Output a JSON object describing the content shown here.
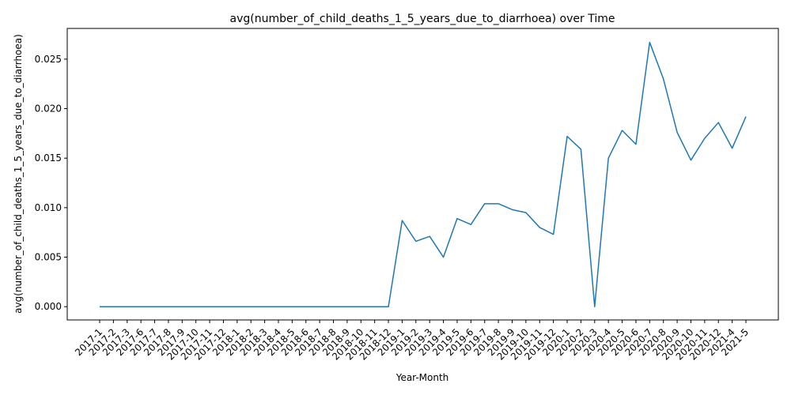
{
  "chart_data": {
    "type": "line",
    "title": "avg(number_of_child_deaths_1_5_years_due_to_diarrhoea) over Time",
    "xlabel": "Year-Month",
    "ylabel": "avg(number_of_child_deaths_1_5_years_due_to_diarrhoea)",
    "ylim": [
      -0.00134,
      0.0281
    ],
    "yticks": [
      0.0,
      0.005,
      0.01,
      0.015,
      0.02,
      0.025
    ],
    "ytick_labels": [
      "0.000",
      "0.005",
      "0.010",
      "0.015",
      "0.020",
      "0.025"
    ],
    "grid": false,
    "legend": "none",
    "series_color": "#1f77b4",
    "categories": [
      "2017-1",
      "2017-2",
      "2017-3",
      "2017-6",
      "2017-7",
      "2017-8",
      "2017-9",
      "2017-10",
      "2017-11",
      "2017-12",
      "2018-1",
      "2018-2",
      "2018-3",
      "2018-4",
      "2018-5",
      "2018-6",
      "2018-7",
      "2018-8",
      "2018-9",
      "2018-10",
      "2018-11",
      "2018-12",
      "2019-1",
      "2019-2",
      "2019-3",
      "2019-4",
      "2019-5",
      "2019-6",
      "2019-7",
      "2019-8",
      "2019-9",
      "2019-10",
      "2019-11",
      "2019-12",
      "2020-1",
      "2020-2",
      "2020-3",
      "2020-4",
      "2020-5",
      "2020-6",
      "2020-7",
      "2020-8",
      "2020-9",
      "2020-10",
      "2020-11",
      "2020-12",
      "2021-4",
      "2021-5"
    ],
    "values": [
      0,
      0,
      0,
      0,
      0,
      0,
      0,
      0,
      0,
      0,
      0,
      0,
      0,
      0,
      0,
      0,
      0,
      0,
      0,
      0,
      0,
      0,
      0.0087,
      0.0066,
      0.0071,
      0.005,
      0.0089,
      0.0083,
      0.0104,
      0.0104,
      0.0098,
      0.0095,
      0.008,
      0.0073,
      0.0172,
      0.0159,
      0.0,
      0.015,
      0.0178,
      0.0164,
      0.0267,
      0.023,
      0.0176,
      0.0148,
      0.017,
      0.0186,
      0.016,
      0.0192
    ]
  }
}
